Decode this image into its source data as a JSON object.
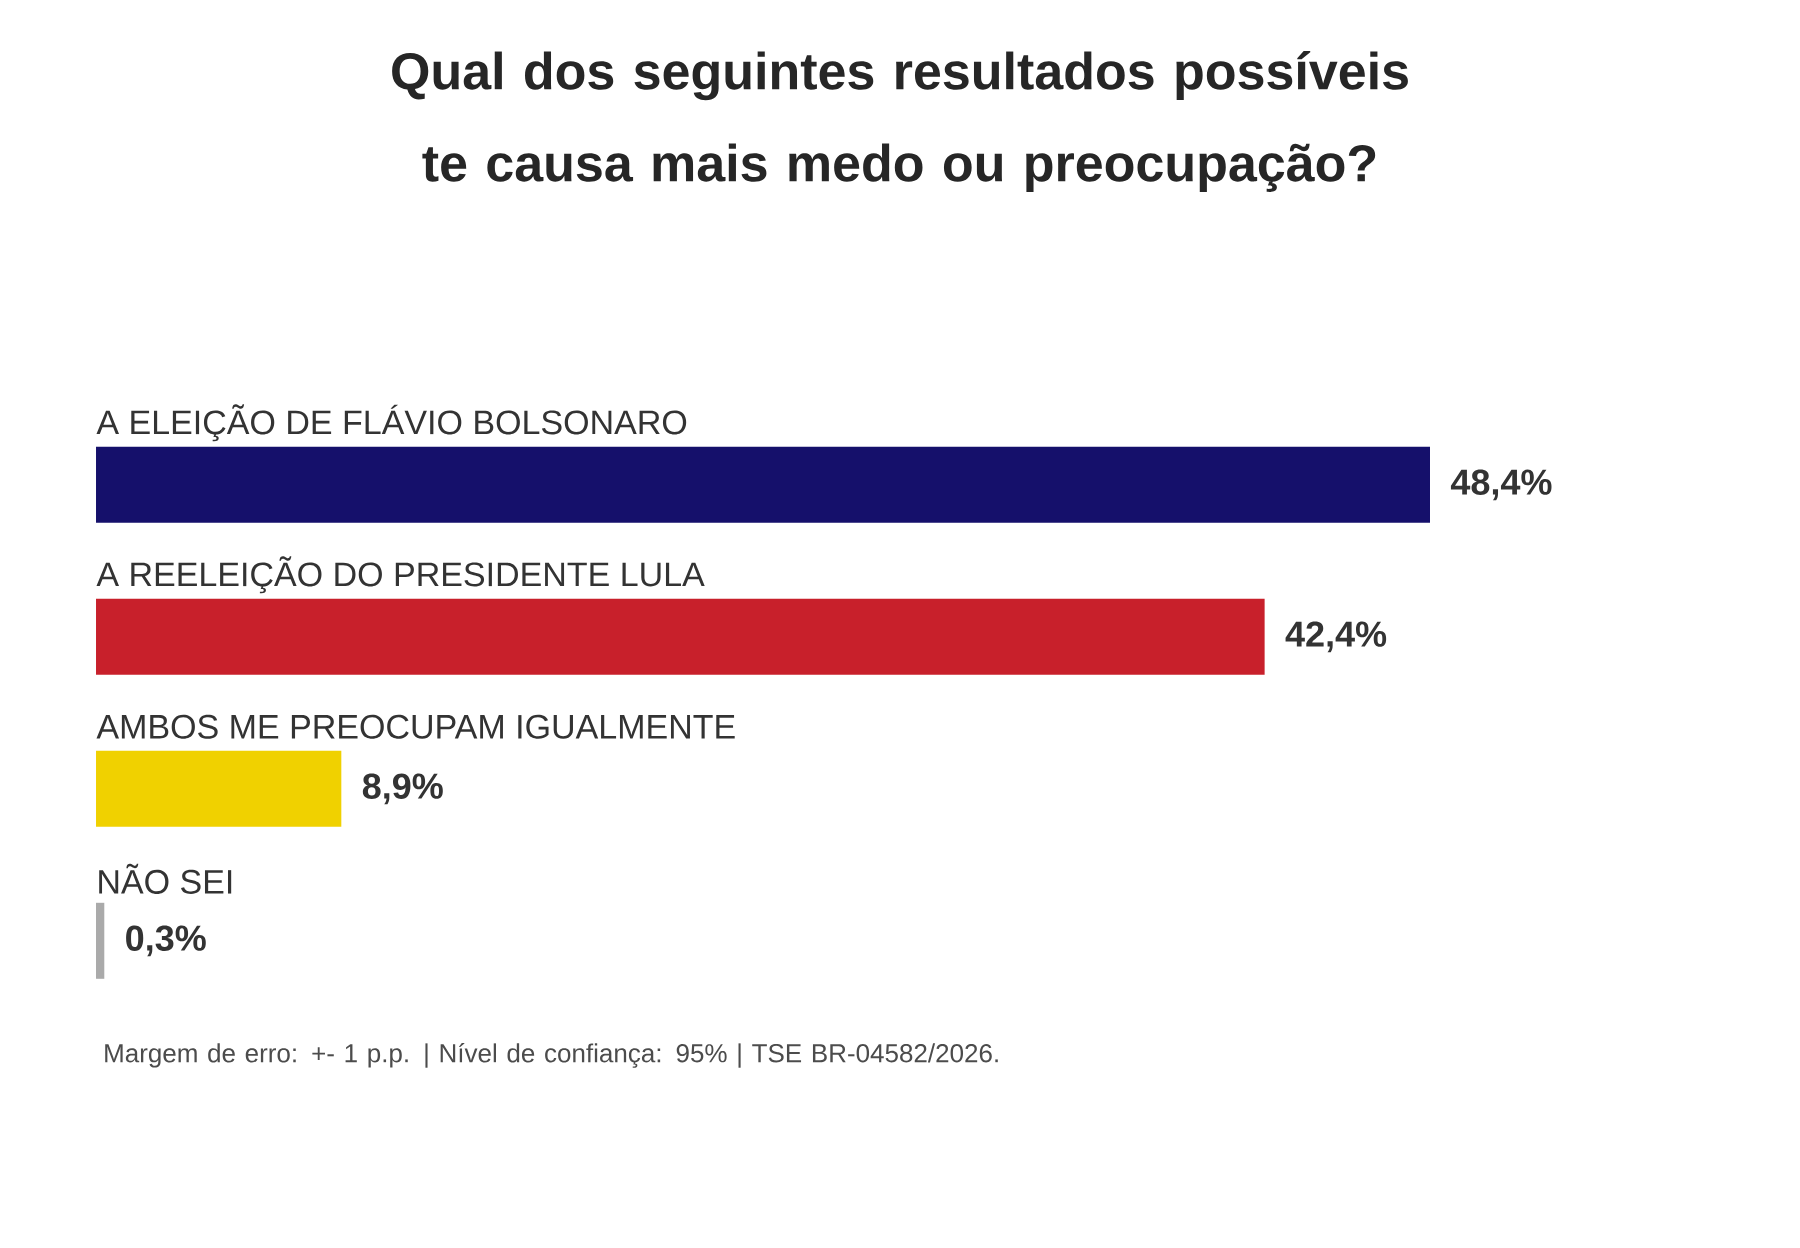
{
  "chart_data": {
    "type": "bar",
    "orientation": "horizontal",
    "title": "Qual dos seguintes resultados possíveis te causa mais medo ou preocupação?",
    "categories": [
      "A ELEIÇÃO DE FLÁVIO BOLSONARO",
      "A REELEIÇÃO DO PRESIDENTE LULA",
      "AMBOS ME PREOCUPAM IGUALMENTE",
      "NÃO SEI"
    ],
    "values": [
      48.4,
      42.4,
      8.9,
      0.3
    ],
    "value_labels": [
      "48,4%",
      "42,4%",
      "8,9%",
      "0,3%"
    ],
    "colors": [
      "#15106b",
      "#c8202b",
      "#f0d100",
      "#aaaaaa"
    ],
    "annotations": [
      "Margem de erro: +- 1 p.p. | Nível de confiança: 95% | TSE BR-04582/2026."
    ]
  }
}
